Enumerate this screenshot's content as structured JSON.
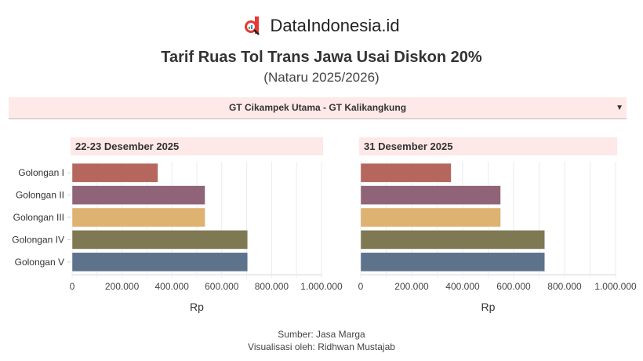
{
  "brand": {
    "name": "DataIndonesia.id",
    "logo_text": "d"
  },
  "title": "Tarif Ruas Tol Trans Jawa Usai Diskon 20%",
  "subtitle": "(Nataru 2025/2026)",
  "filter": {
    "selected": "GT Cikampek Utama - GT Kalikangkung",
    "icon": "caret-down-icon"
  },
  "chart_data": {
    "type": "bar",
    "orientation": "horizontal",
    "categories": [
      "Golongan I",
      "Golongan II",
      "Golongan III",
      "Golongan IV",
      "Golongan V"
    ],
    "colors": [
      "#b5675e",
      "#8f6479",
      "#deb271",
      "#7f7953",
      "#5d728b"
    ],
    "xlabel": "Rp",
    "xlim": [
      0,
      1000000
    ],
    "xticks": [
      0,
      200000,
      400000,
      600000,
      800000,
      1000000
    ],
    "xtick_labels": [
      "0",
      "200.000",
      "400.000",
      "600.000",
      "800.000",
      "1.000.000"
    ],
    "grid": true,
    "panels": [
      {
        "label": "22-23 Desember 2025",
        "values": [
          344000,
          533000,
          533000,
          703500,
          703500
        ]
      },
      {
        "label": "31 Desember 2025",
        "values": [
          355000,
          549000,
          549000,
          722000,
          722000
        ]
      }
    ]
  },
  "source": {
    "line1": "Sumber: Jasa Marga",
    "line2": "Visualisasi oleh: Ridhwan Mustajab"
  }
}
